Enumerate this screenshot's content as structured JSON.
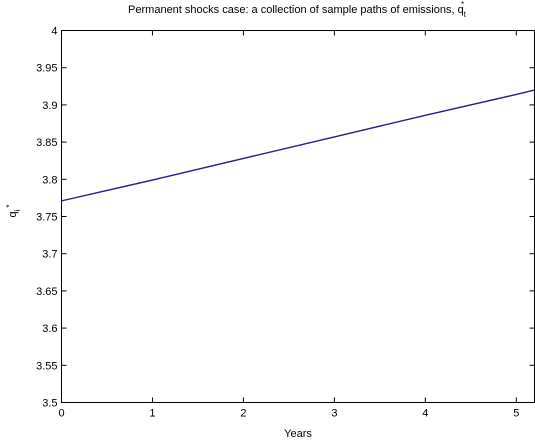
{
  "chart_data": {
    "type": "line",
    "title": "Permanent shocks case: a collection of sample paths of emissions, q",
    "title_sub": "t",
    "title_sup": "*",
    "xlabel": "Years",
    "ylabel": "q",
    "ylabel_sub": "i",
    "ylabel_sup": "*",
    "xlim": [
      0,
      5.2
    ],
    "ylim": [
      3.5,
      4.0
    ],
    "xticks": [
      "0",
      "1",
      "2",
      "3",
      "4",
      "5"
    ],
    "xtick_values": [
      0,
      1,
      2,
      3,
      4,
      5
    ],
    "yticks": [
      "3.5",
      "3.55",
      "3.6",
      "3.65",
      "3.7",
      "3.75",
      "3.8",
      "3.85",
      "3.9",
      "3.95",
      "4"
    ],
    "ytick_values": [
      3.5,
      3.55,
      3.6,
      3.65,
      3.7,
      3.75,
      3.8,
      3.85,
      3.9,
      3.95,
      4.0
    ],
    "grid": false,
    "series": [
      {
        "color": "#1f1f8f",
        "x": [
          0,
          1,
          2,
          3,
          4,
          5,
          5.2
        ],
        "y": [
          3.771,
          3.799,
          3.828,
          3.857,
          3.886,
          3.914,
          3.92
        ]
      }
    ]
  }
}
